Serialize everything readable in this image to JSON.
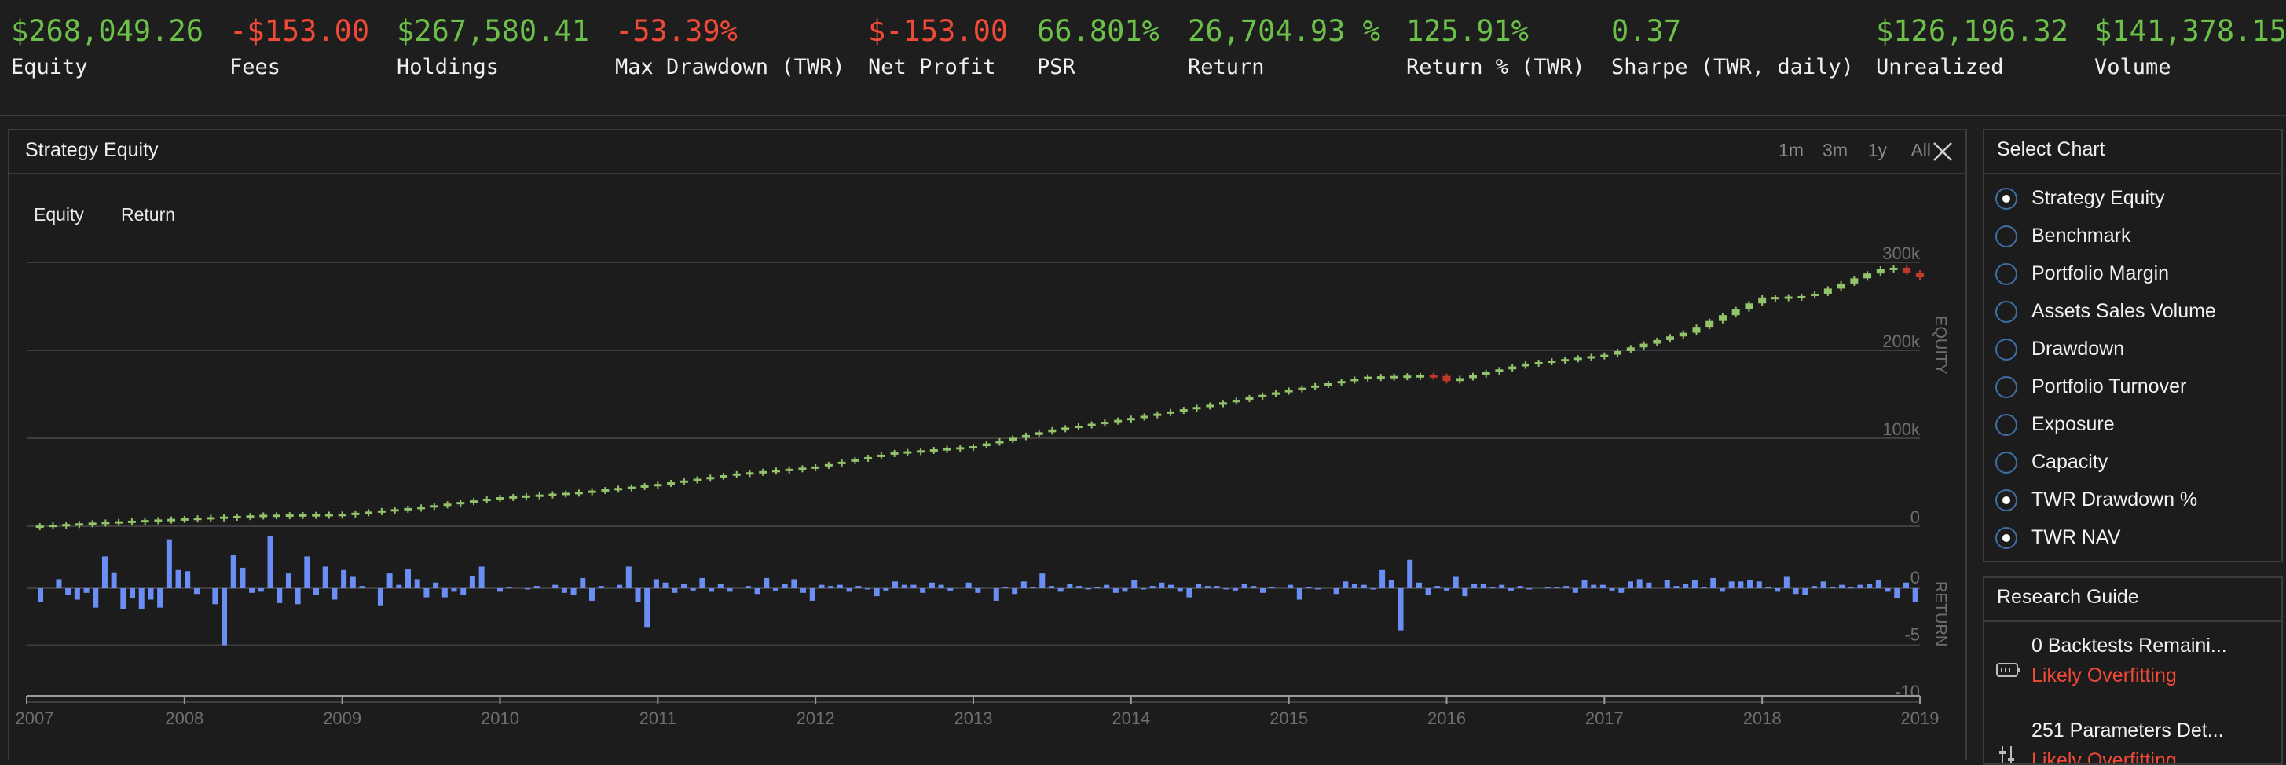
{
  "stats": [
    {
      "value": "$268,049.26",
      "label": "Equity",
      "tone": "pos"
    },
    {
      "value": "-$153.00",
      "label": "Fees",
      "tone": "neg"
    },
    {
      "value": "$267,580.41",
      "label": "Holdings",
      "tone": "pos"
    },
    {
      "value": "-53.39%",
      "label": "Max Drawdown (TWR)",
      "tone": "neg"
    },
    {
      "value": "$-153.00",
      "label": "Net Profit",
      "tone": "neg"
    },
    {
      "value": "66.801%",
      "label": "PSR",
      "tone": "pos"
    },
    {
      "value": "26,704.93 %",
      "label": "Return",
      "tone": "pos"
    },
    {
      "value": "125.91%",
      "label": "Return % (TWR)",
      "tone": "pos"
    },
    {
      "value": "0.37",
      "label": "Sharpe (TWR, daily)",
      "tone": "pos"
    },
    {
      "value": "$126,196.32",
      "label": "Unrealized",
      "tone": "pos"
    },
    {
      "value": "$141,378.15",
      "label": "Volume",
      "tone": "pos"
    }
  ],
  "chart_panel": {
    "title": "Strategy Equity",
    "ranges": [
      "1m",
      "3m",
      "1y",
      "All"
    ],
    "legend": [
      "Equity",
      "Return"
    ]
  },
  "select_chart": {
    "title": "Select Chart",
    "options": [
      {
        "label": "Strategy Equity",
        "checked": true
      },
      {
        "label": "Benchmark",
        "checked": false
      },
      {
        "label": "Portfolio Margin",
        "checked": false
      },
      {
        "label": "Assets Sales Volume",
        "checked": false
      },
      {
        "label": "Drawdown",
        "checked": false
      },
      {
        "label": "Portfolio Turnover",
        "checked": false
      },
      {
        "label": "Exposure",
        "checked": false
      },
      {
        "label": "Capacity",
        "checked": false
      },
      {
        "label": "TWR Drawdown %",
        "checked": true
      },
      {
        "label": "TWR NAV",
        "checked": true
      }
    ]
  },
  "research_guide": {
    "title": "Research Guide",
    "items": [
      {
        "title": "0 Backtests Remaini...",
        "warning": "Likely Overfitting",
        "icon": "battery-icon"
      },
      {
        "title": "251 Parameters Det...",
        "warning": "Likely Overfitting",
        "icon": "sliders-icon"
      }
    ]
  },
  "colors": {
    "up": "#93c36b",
    "down": "#c0392b",
    "return_bar": "#6b8ef5",
    "grid": "#3e3e3e",
    "axis_text": "#6f6f6f"
  },
  "chart_data": {
    "type": "line",
    "x_ticks": [
      "2007",
      "2008",
      "2009",
      "2010",
      "2011",
      "2012",
      "2013",
      "2014",
      "2015",
      "2016",
      "2017",
      "2018",
      "2019"
    ],
    "equity": {
      "axis_label": "EQUITY",
      "ticks": [
        "0",
        "100k",
        "200k",
        "300k"
      ],
      "ylim": [
        0,
        300000
      ],
      "points": [
        [
          2007.0,
          0
        ],
        [
          2007.5,
          5000
        ],
        [
          2008.0,
          9000
        ],
        [
          2008.5,
          13000
        ],
        [
          2009.0,
          14000
        ],
        [
          2009.5,
          22000
        ],
        [
          2010.0,
          33000
        ],
        [
          2010.5,
          39000
        ],
        [
          2011.0,
          48000
        ],
        [
          2011.5,
          60000
        ],
        [
          2012.0,
          68000
        ],
        [
          2012.5,
          84000
        ],
        [
          2013.0,
          91000
        ],
        [
          2013.5,
          110000
        ],
        [
          2014.0,
          123000
        ],
        [
          2014.5,
          138000
        ],
        [
          2015.0,
          155000
        ],
        [
          2015.5,
          170000
        ],
        [
          2015.9,
          172000
        ],
        [
          2016.0,
          165000
        ],
        [
          2016.5,
          185000
        ],
        [
          2017.0,
          195000
        ],
        [
          2017.5,
          220000
        ],
        [
          2018.0,
          260000
        ],
        [
          2018.3,
          262000
        ],
        [
          2018.6,
          283000
        ],
        [
          2018.8,
          296000
        ],
        [
          2019.0,
          283000
        ]
      ]
    },
    "return": {
      "axis_label": "RETURN",
      "ticks": [
        "0",
        "-5",
        "-10"
      ],
      "ylim": [
        -10,
        3
      ],
      "monthly": [
        0,
        -1.2,
        0,
        0.8,
        -0.6,
        -1.0,
        -0.4,
        -1.7,
        2.8,
        1.4,
        -1.8,
        -0.9,
        -1.8,
        -1.0,
        -1.7,
        4.3,
        1.6,
        1.5,
        -0.5,
        0,
        -1.4,
        -5.0,
        2.9,
        1.8,
        -0.4,
        -0.3,
        4.6,
        -1.3,
        1.3,
        -1.4,
        2.8,
        -0.6,
        1.9,
        -1.0,
        1.6,
        1.0,
        0.2,
        0,
        -1.5,
        1.3,
        0.3,
        1.7,
        0.8,
        -0.8,
        0.5,
        -0.8,
        -0.3,
        -0.6,
        1.1,
        1.9,
        0,
        -0.3,
        0.1,
        0,
        -0.1,
        0.2,
        0,
        0.3,
        -0.4,
        -0.6,
        0.9,
        -1.1,
        0.2,
        0,
        0.3,
        1.9,
        -1.2,
        -3.4,
        0.8,
        0.5,
        -0.4,
        0.4,
        -0.2,
        0.9,
        -0.3,
        0.4,
        -0.3,
        0,
        0.2,
        -0.5,
        0.9,
        -0.2,
        0.4,
        0.8,
        -0.4,
        -1.1,
        0.3,
        0.2,
        0.3,
        -0.3,
        0.2,
        -0.1,
        -0.7,
        -0.2,
        0.6,
        0.3,
        0.3,
        -0.4,
        0.5,
        0.3,
        -0.2,
        0,
        0.5,
        -0.4,
        0,
        -1.1,
        0.1,
        -0.5,
        0.6,
        0.1,
        1.3,
        0.2,
        -0.3,
        0.4,
        0.2,
        -0.1,
        0.1,
        0.3,
        -0.4,
        -0.3,
        0.7,
        -0.1,
        0.2,
        0.5,
        0.3,
        -0.3,
        -0.8,
        0.4,
        0.2,
        0.2,
        -0.1,
        -0.2,
        0.4,
        0.2,
        -0.4,
        0.1,
        0,
        0.3,
        -1.0,
        0.1,
        -0.1,
        0,
        -0.5,
        0.6,
        0.4,
        0.3,
        -0.1,
        1.6,
        0.7,
        -3.7,
        2.5,
        0.5,
        -0.6,
        0.2,
        -0.2,
        1.0,
        -0.7,
        0.4,
        0.4,
        0.1,
        0.3,
        -0.2,
        0.2,
        -0.1,
        0,
        0.1,
        0.1,
        0.2,
        -0.4,
        0.7,
        0.3,
        0.3,
        -0.2,
        -0.4,
        0.6,
        0.8,
        0.5,
        0,
        0.7,
        0.2,
        0.4,
        0.7,
        0.1,
        0.9,
        -0.3,
        0.6,
        0.6,
        0.7,
        0.6,
        0.1,
        -0.3,
        1.0,
        -0.5,
        -0.6,
        0.2,
        0.6,
        0.1,
        0.3,
        0.1,
        0.3,
        0.4,
        0.7,
        -0.3,
        -0.9,
        0.5,
        -1.2
      ]
    }
  }
}
